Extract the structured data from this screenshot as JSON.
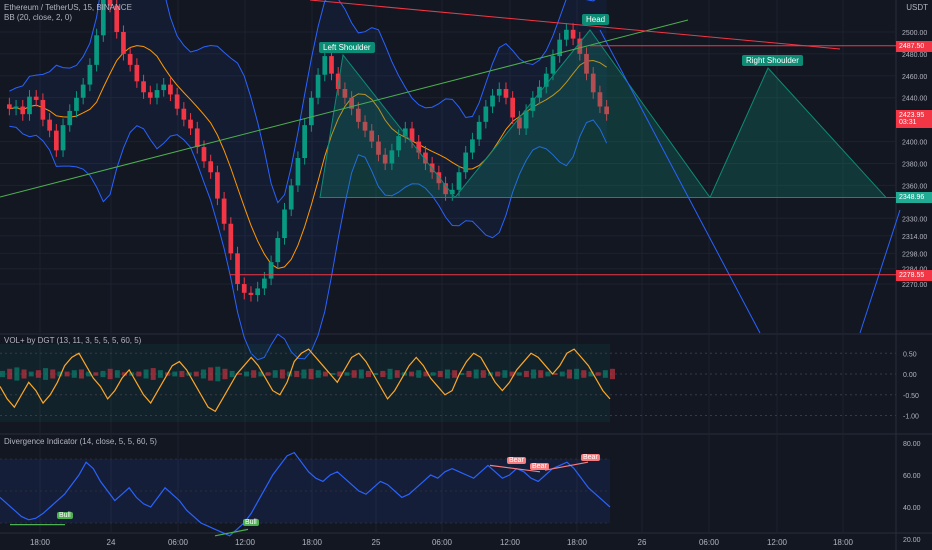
{
  "header": {
    "symbol_line": "Ethereum / TetherUS, 15, BINANCE",
    "bb_line": "BB (20, close, 2, 0)",
    "currency": "USDT"
  },
  "colors": {
    "background": "#131722",
    "grid": "#1e222d",
    "up": "#089981",
    "down": "#f23645",
    "bb_line": "#2962ff",
    "bb_basis": "#ff9800",
    "pattern_fill": "#0d8c75",
    "neckline": "#4caf50",
    "trendline_red": "#f23645",
    "level_red": "#f23645",
    "vol_osc": "#ffa726",
    "rsi": "#2962ff",
    "bull": "#4caf50",
    "bear": "#f77c80"
  },
  "chart_data": [
    {
      "type": "candlestick",
      "title": "Ethereum / TetherUS, 15, BINANCE",
      "price_axis_ticks": [
        "2500.00",
        "2480.00",
        "2460.00",
        "2440.00",
        "2400.00",
        "2380.00",
        "2360.00",
        "2330.00",
        "2314.00",
        "2298.00",
        "2284.00",
        "2270.00"
      ],
      "time_axis_ticks": [
        "18:00",
        "24",
        "06:00",
        "12:00",
        "18:00",
        "25",
        "06:00",
        "12:00",
        "18:00",
        "26",
        "06:00",
        "12:00",
        "18:00"
      ],
      "price_badges": [
        {
          "label": "2487.50",
          "value": 2487.5,
          "color": "#f23645"
        },
        {
          "label": "2423.95",
          "value": 2424,
          "color": "#f23645"
        },
        {
          "label": "03:31",
          "value": 2418,
          "color": "#f23645"
        },
        {
          "label": "2348.96",
          "value": 2349,
          "color": "#22ab94"
        },
        {
          "label": "2278.55",
          "value": 2278.5,
          "color": "#f23645"
        }
      ],
      "pattern_labels": [
        "Left Shoulder",
        "Head",
        "Right Shoulder"
      ],
      "neckline_value": 2349,
      "horizontal_levels": [
        2487.5,
        2278.5
      ],
      "series": [
        {
          "name": "ETHUSDT",
          "values": [
            2430,
            2432,
            2425,
            2441,
            2438,
            2420,
            2410,
            2392,
            2415,
            2428,
            2440,
            2452,
            2470,
            2497,
            2540,
            2524,
            2500,
            2480,
            2470,
            2455,
            2445,
            2440,
            2447,
            2452,
            2443,
            2430,
            2420,
            2412,
            2395,
            2382,
            2372,
            2348,
            2325,
            2298,
            2270,
            2262,
            2260,
            2266,
            2275,
            2290,
            2312,
            2338,
            2360,
            2385,
            2415,
            2440,
            2461,
            2478,
            2462,
            2448,
            2440,
            2430,
            2418,
            2410,
            2400,
            2388,
            2380,
            2392,
            2405,
            2412,
            2400,
            2390,
            2380,
            2372,
            2362,
            2352,
            2356,
            2372,
            2390,
            2402,
            2418,
            2432,
            2442,
            2448,
            2440,
            2422,
            2412,
            2428,
            2440,
            2450,
            2462,
            2478,
            2493,
            2502,
            2494,
            2480,
            2462,
            2445,
            2432,
            2425
          ]
        }
      ]
    },
    {
      "type": "line",
      "title": "VOL+ by DGT (13, 11, 3, 5, 5, 5, 60, 5)",
      "y_ticks": [
        "0.50",
        "0.00",
        "-0.50",
        "-1.00"
      ],
      "ylim": [
        -1.2,
        0.7
      ],
      "series": [
        {
          "name": "oscillator",
          "values": [
            -0.3,
            -0.6,
            -0.8,
            -0.5,
            -0.2,
            -0.4,
            -0.7,
            -0.5,
            -0.2,
            0.2,
            0.4,
            0.5,
            0.2,
            -0.1,
            -0.3,
            -0.6,
            -0.4,
            -0.1,
            0.1,
            -0.2,
            -0.5,
            -0.7,
            -0.4,
            -0.1,
            0.2,
            0.3,
            0.1,
            -0.2,
            -0.5,
            -0.8,
            -0.9,
            -0.6,
            -0.3,
            0.0,
            0.2,
            0.4,
            0.2,
            -0.1,
            -0.4,
            -0.5,
            -0.2,
            0.3,
            0.5,
            0.6,
            0.4,
            0.2,
            0.0,
            -0.2,
            0.1,
            0.4,
            0.5,
            0.3,
            0.0,
            -0.3,
            -0.6,
            -0.4,
            -0.1,
            0.2,
            0.4,
            0.2,
            -0.1,
            -0.3,
            -0.5,
            -0.4,
            0.0,
            0.3,
            0.5,
            0.4,
            0.1,
            -0.2,
            -0.4,
            -0.2,
            0.1,
            0.3,
            0.5,
            0.4,
            0.2,
            0.0,
            0.2,
            0.5,
            0.6,
            0.4,
            0.2,
            -0.1,
            -0.4,
            -0.6
          ]
        }
      ]
    },
    {
      "type": "line",
      "title": "Divergence Indicator (14, close, 5, 5, 60, 5)",
      "y_ticks": [
        "80.00",
        "60.00",
        "40.00",
        "20.00"
      ],
      "ylim": [
        18,
        85
      ],
      "signal_labels": [
        "Bull",
        "Bull",
        "Bear",
        "Bear",
        "Bear"
      ],
      "series": [
        {
          "name": "RSI",
          "values": [
            46,
            42,
            38,
            34,
            32,
            33,
            36,
            40,
            44,
            48,
            54,
            60,
            68,
            64,
            56,
            50,
            44,
            48,
            52,
            46,
            42,
            40,
            46,
            52,
            48,
            44,
            38,
            34,
            30,
            28,
            26,
            24,
            22,
            26,
            30,
            36,
            44,
            52,
            60,
            66,
            72,
            74,
            68,
            62,
            58,
            56,
            60,
            62,
            58,
            54,
            50,
            48,
            52,
            56,
            54,
            50,
            46,
            48,
            52,
            56,
            60,
            58,
            62,
            64,
            62,
            60,
            58,
            62,
            66,
            62,
            58,
            60,
            64,
            62,
            58,
            56,
            60,
            64,
            66,
            68,
            64,
            58,
            52,
            48,
            44,
            40
          ]
        }
      ]
    }
  ]
}
